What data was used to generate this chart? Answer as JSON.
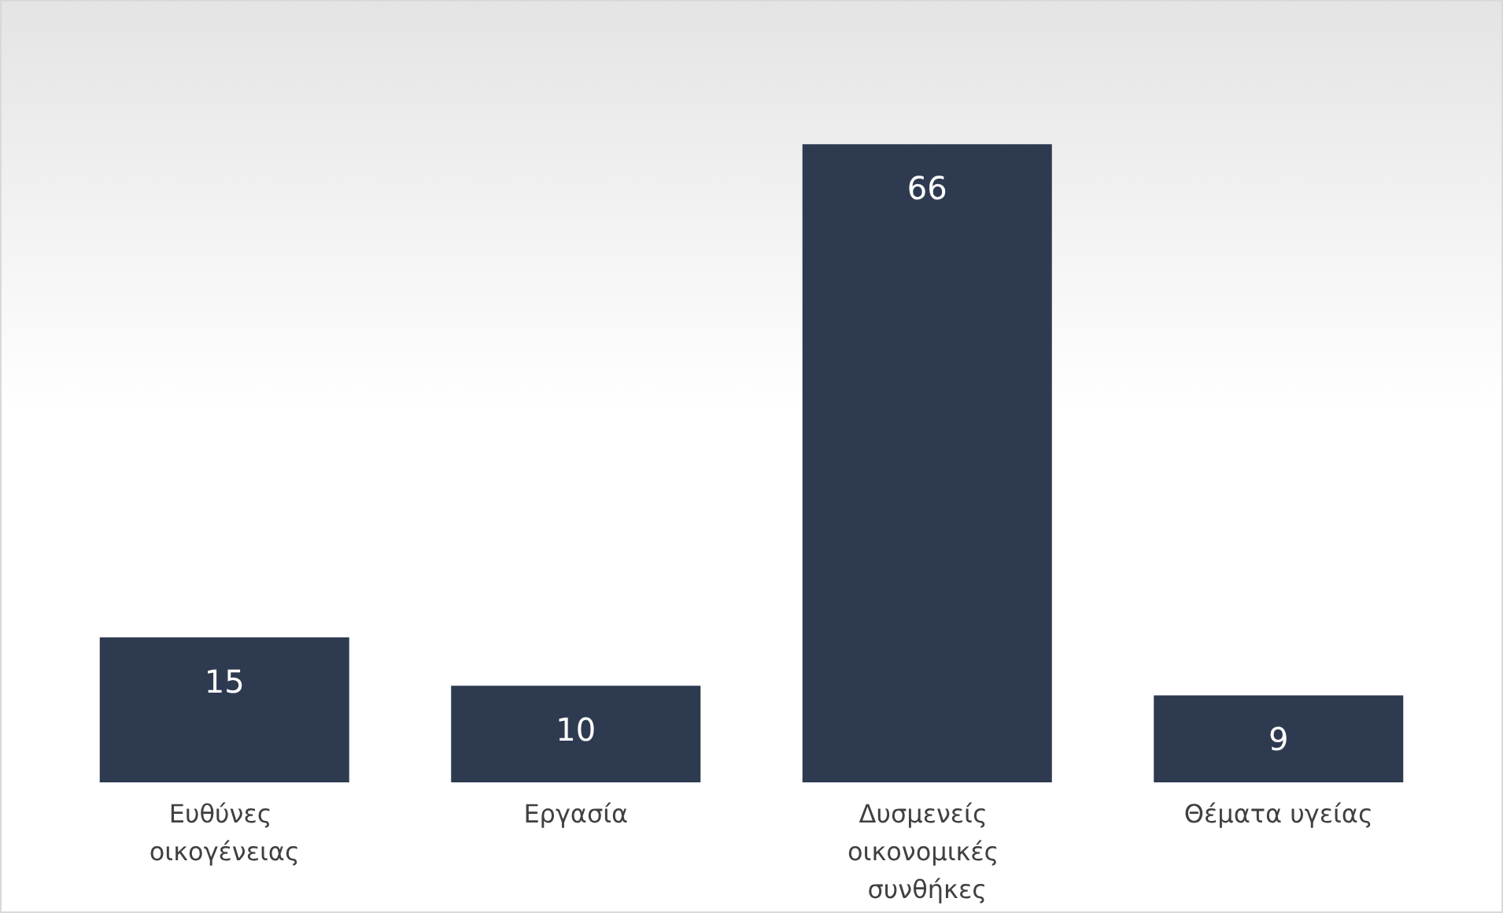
{
  "chart_data": {
    "type": "bar",
    "categories": [
      "Ευθύνες οικογένειας",
      "Εργασία",
      "Δυσμενείς οικονομικές συνθήκες",
      "Θέματα υγείας"
    ],
    "values": [
      15,
      10,
      66,
      9
    ],
    "color": "#2e3a50",
    "data_labels": true
  }
}
